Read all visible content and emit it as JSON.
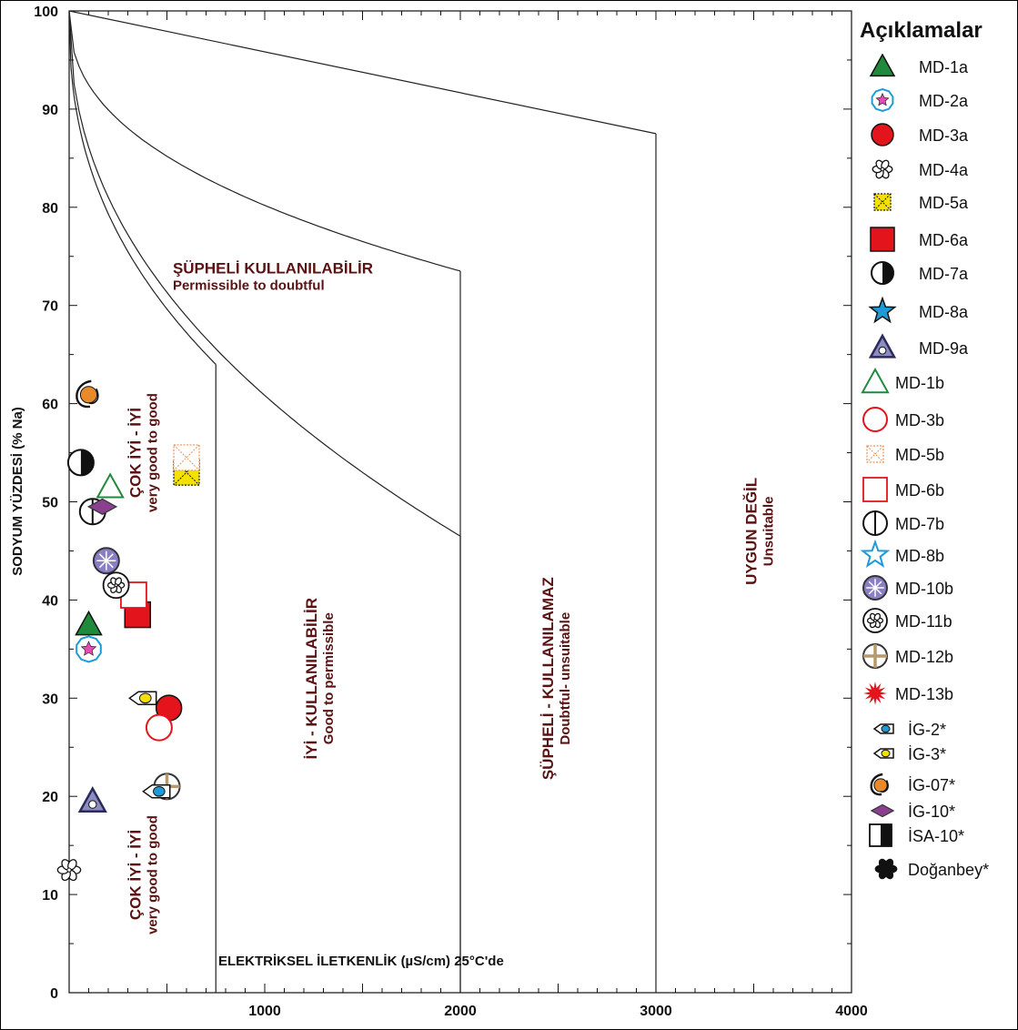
{
  "chart_data": {
    "type": "scatter",
    "xlabel": "ELEKTRİKSEL İLETKENLİK (µS/cm) 25°C'de",
    "ylabel": "SODYUM YÜZDESİ (% Na)",
    "xlim": [
      0,
      4000
    ],
    "ylim": [
      0,
      100
    ],
    "x_ticks": [
      "1000",
      "2000",
      "3000",
      "4000"
    ],
    "y_ticks": [
      "0",
      "10",
      "20",
      "30",
      "40",
      "50",
      "60",
      "70",
      "80",
      "90",
      "100"
    ],
    "zones": [
      {
        "tr": "ÇOK İYİ - İYİ",
        "en": "very good to good",
        "x": 420,
        "y": 55
      },
      {
        "tr": "ÇOK İYİ - İYİ",
        "en": "very good to good",
        "x": 420,
        "y": 12
      },
      {
        "tr": "ŞÜPHELİ KULLANILABİLİR",
        "en": "Permissible to doubtful",
        "x": 530,
        "y": 74
      },
      {
        "tr": "İYİ - KULLANILABİLİR",
        "en": "Good to permissible",
        "x": 1320,
        "y": 32
      },
      {
        "tr": "ŞÜPHELİ - KULLANILAMAZ",
        "en": "Doubtful- unsuitable",
        "x": 2530,
        "y": 32
      },
      {
        "tr": "UYGUN DEĞİL",
        "en": "Unsuitable",
        "x": 3570,
        "y": 47
      }
    ],
    "legend_title": "Açıklamalar",
    "series": [
      {
        "name": "MD-1a",
        "marker": "tri-filled",
        "color": "#1f8a3b",
        "x": 100,
        "y": 37.5
      },
      {
        "name": "MD-2a",
        "marker": "pentagon-star",
        "color": "#1e9bd7",
        "x": 100,
        "y": 35
      },
      {
        "name": "MD-3a",
        "marker": "circle-filled",
        "color": "#e3141b",
        "x": 510,
        "y": 29
      },
      {
        "name": "MD-4a",
        "marker": "flower-outline",
        "color": "#222222",
        "x": 0,
        "y": 12.5
      },
      {
        "name": "MD-5a",
        "marker": "square-x",
        "color": "#f5e100",
        "x": 600,
        "y": 53
      },
      {
        "name": "MD-6a",
        "marker": "square-filled",
        "color": "#e3141b",
        "x": 350,
        "y": 38.5
      },
      {
        "name": "MD-7a",
        "marker": "circle-half",
        "color": "#111111",
        "x": 60,
        "y": 54
      },
      {
        "name": "MD-8a",
        "marker": "star-filled",
        "color": "#1e9bd7",
        "x": null,
        "y": null
      },
      {
        "name": "MD-9a",
        "marker": "tri-dot",
        "color": "#2b2b5a",
        "x": 120,
        "y": 19.5
      },
      {
        "name": "MD-1b",
        "marker": "tri-outline",
        "color": "#1f8a3b",
        "x": 210,
        "y": 51.5
      },
      {
        "name": "MD-3b",
        "marker": "circle-outline",
        "color": "#e3141b",
        "x": 460,
        "y": 27
      },
      {
        "name": "MD-5b",
        "marker": "square-x-outline",
        "color": "#e8935a",
        "x": 600,
        "y": 54.5
      },
      {
        "name": "MD-6b",
        "marker": "square-outline",
        "color": "#e3141b",
        "x": 330,
        "y": 40.5
      },
      {
        "name": "MD-7b",
        "marker": "circle-vline",
        "color": "#111111",
        "x": 120,
        "y": 49
      },
      {
        "name": "MD-8b",
        "marker": "star-outline",
        "color": "#1e9bd7",
        "x": null,
        "y": null
      },
      {
        "name": "MD-10b",
        "marker": "circle-asterisk",
        "color": "#8a7fc4",
        "x": 190,
        "y": 44
      },
      {
        "name": "MD-11b",
        "marker": "flower-circle",
        "color": "#111111",
        "x": 240,
        "y": 41.5
      },
      {
        "name": "MD-12b",
        "marker": "circle-cross",
        "color": "#b79a6b",
        "x": 500,
        "y": 21
      },
      {
        "name": "MD-13b",
        "marker": "burst",
        "color": "#e3141b",
        "x": null,
        "y": null
      },
      {
        "name": "İG-2*",
        "marker": "pencil",
        "color": "#1e9bd7",
        "x": 450,
        "y": 20.5
      },
      {
        "name": "İG-3*",
        "marker": "pencil",
        "color": "#f5e100",
        "x": 380,
        "y": 30
      },
      {
        "name": "İG-07*",
        "marker": "swirl",
        "color": "#e88a2a",
        "x": 100,
        "y": 61
      },
      {
        "name": "İG-10*",
        "marker": "diamond",
        "color": "#8b3f8f",
        "x": 170,
        "y": 49.5
      },
      {
        "name": "İSA-10*",
        "marker": "square-half",
        "color": "#111111",
        "x": null,
        "y": null
      },
      {
        "name": "Doğanbey*",
        "marker": "flower-filled",
        "color": "#111111",
        "x": null,
        "y": null
      }
    ]
  }
}
